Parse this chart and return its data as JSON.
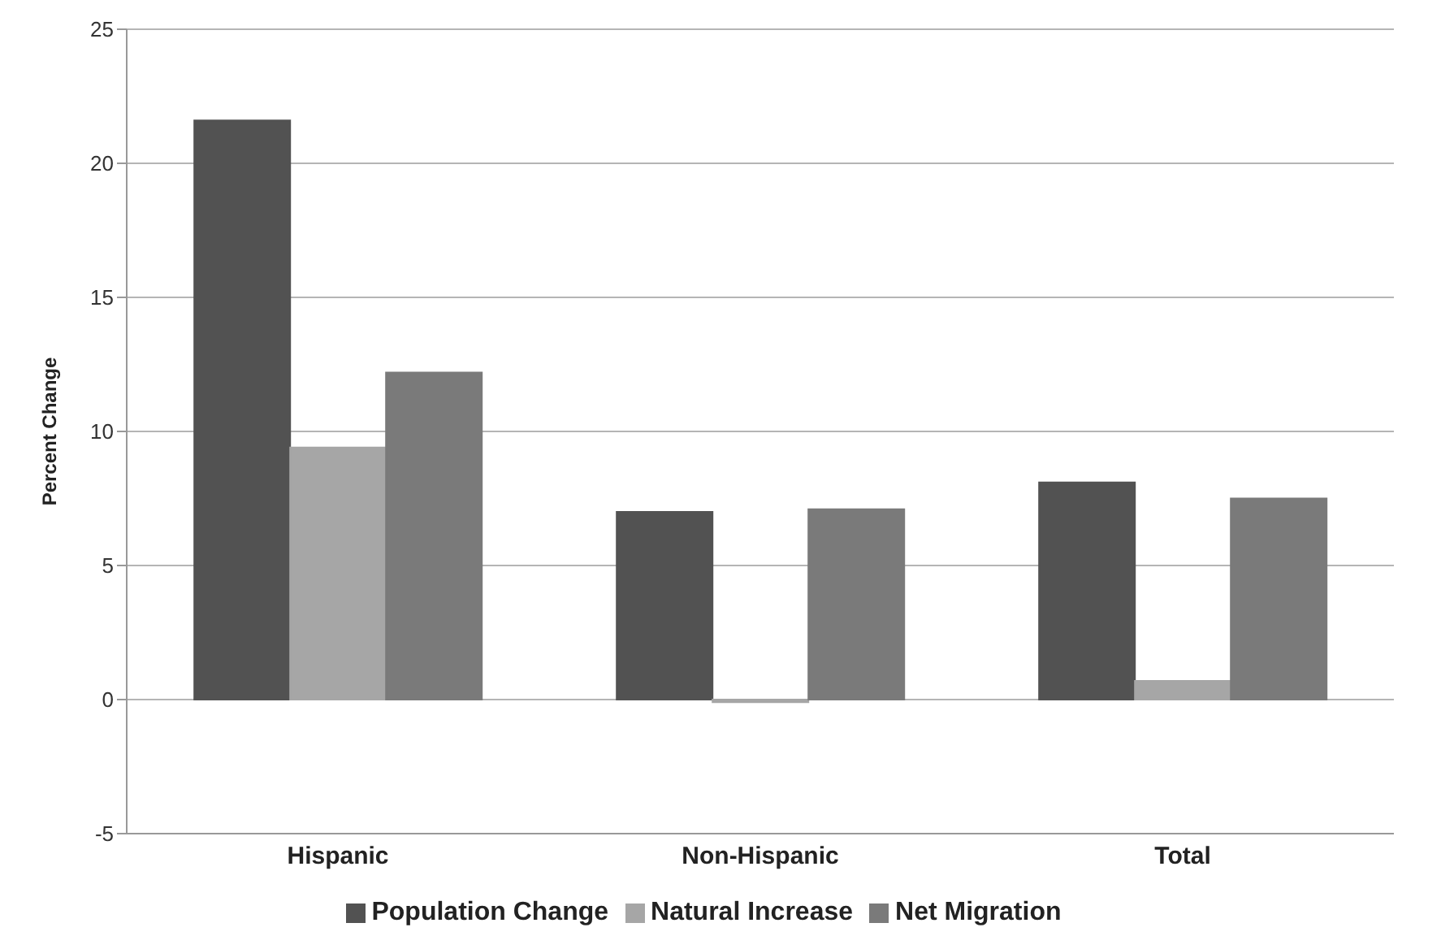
{
  "chart_data": {
    "type": "bar",
    "ylabel": "Percent Change",
    "categories": [
      "Hispanic",
      "Non-Hispanic",
      "Total"
    ],
    "series": [
      {
        "name": "Population Change",
        "color": "#525252",
        "values": [
          21.6,
          7.0,
          8.1
        ]
      },
      {
        "name": "Natural Increase",
        "color": "#a6a6a6",
        "values": [
          9.4,
          -0.1,
          0.7
        ]
      },
      {
        "name": "Net Migration",
        "color": "#7a7a7a",
        "values": [
          12.2,
          7.1,
          7.5
        ]
      }
    ],
    "ylim": [
      -5,
      25
    ],
    "yticks": [
      -5,
      0,
      5,
      10,
      15,
      20,
      25
    ],
    "grid": "y",
    "legend": "bottom"
  }
}
